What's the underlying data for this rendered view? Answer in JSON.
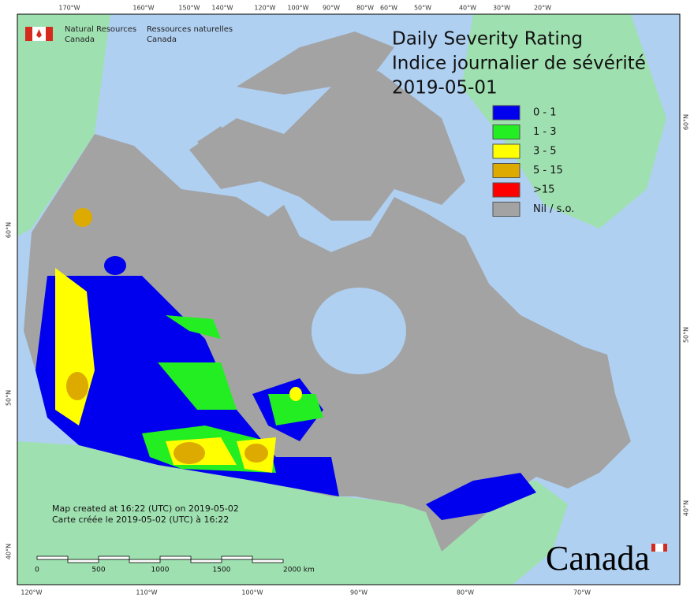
{
  "agency_en": [
    "Natural Resources",
    "Canada"
  ],
  "agency_fr": [
    "Ressources naturelles",
    "Canada"
  ],
  "title": [
    "Daily Severity Rating",
    "Indice journalier de sévérité",
    "2019-05-01"
  ],
  "legend": [
    {
      "label": "0 - 1",
      "color": "#0000ee"
    },
    {
      "label": "1 - 3",
      "color": "#22ee22"
    },
    {
      "label": "3 - 5",
      "color": "#ffff00"
    },
    {
      "label": "5 - 15",
      "color": "#ddaa00"
    },
    {
      "label": ">15",
      "color": "#ff0000"
    },
    {
      "label": "Nil / s.o.",
      "color": "#a3a3a3"
    }
  ],
  "graticule_top": [
    "170°W",
    "160°W",
    "150°W",
    "140°W",
    "120°W",
    "100°W",
    "90°W",
    "80°W",
    "60°W",
    "50°W",
    "40°W",
    "30°W",
    "20°W"
  ],
  "graticule_bottom": [
    "120°W",
    "110°W",
    "100°W",
    "90°W",
    "80°W",
    "70°W"
  ],
  "graticule_left": [
    "60°N",
    "50°N",
    "40°N"
  ],
  "graticule_right": [
    "60°N",
    "50°N",
    "40°N"
  ],
  "notes": [
    "Map created at 16:22 (UTC) on 2019-05-02",
    "Carte créée le 2019-05-02 (UTC) à 16:22"
  ],
  "scale_labels": [
    "0",
    "500",
    "1000",
    "1500",
    "2000 km"
  ],
  "wordmark": "Canada"
}
